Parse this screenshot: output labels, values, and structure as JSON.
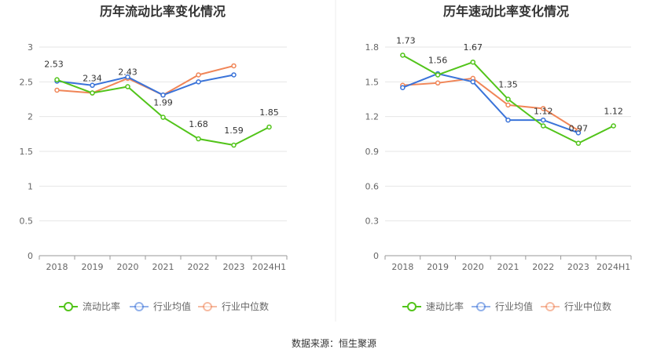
{
  "source_text": "数据来源：恒生聚源",
  "chart_data": [
    {
      "type": "line",
      "title": "历年流动比率变化情况",
      "categories": [
        "2018",
        "2019",
        "2020",
        "2021",
        "2022",
        "2023",
        "2024H1"
      ],
      "ylim": [
        0,
        3
      ],
      "yticks": [
        0,
        0.5,
        1,
        1.5,
        2,
        2.5,
        3
      ],
      "ytick_labels": [
        "0",
        "0.5",
        "1",
        "1.5",
        "2",
        "2.5",
        "3"
      ],
      "grid": true,
      "legend_position": "bottom",
      "series": [
        {
          "name": "流动比率",
          "color": "#52c41a",
          "labeled": true,
          "values": [
            2.53,
            2.34,
            2.43,
            1.99,
            1.68,
            1.59,
            1.85
          ],
          "labels": [
            "2.53",
            "2.34",
            "2.43",
            "1.99",
            "1.68",
            "1.59",
            "1.85"
          ]
        },
        {
          "name": "行业均值",
          "color": "#3a73d9",
          "labeled": false,
          "values": [
            2.51,
            2.45,
            2.57,
            2.31,
            2.5,
            2.6,
            null
          ]
        },
        {
          "name": "行业中位数",
          "color": "#f08557",
          "labeled": false,
          "values": [
            2.38,
            2.34,
            2.55,
            2.31,
            2.6,
            2.73,
            null
          ]
        }
      ]
    },
    {
      "type": "line",
      "title": "历年速动比率变化情况",
      "categories": [
        "2018",
        "2019",
        "2020",
        "2021",
        "2022",
        "2023",
        "2024H1"
      ],
      "ylim": [
        0,
        1.8
      ],
      "yticks": [
        0,
        0.3,
        0.6,
        0.9,
        1.2,
        1.5,
        1.8
      ],
      "ytick_labels": [
        "0",
        "0.3",
        "0.6",
        "0.9",
        "1.2",
        "1.5",
        "1.8"
      ],
      "grid": true,
      "legend_position": "bottom",
      "series": [
        {
          "name": "速动比率",
          "color": "#52c41a",
          "labeled": true,
          "values": [
            1.73,
            1.56,
            1.67,
            1.35,
            1.12,
            0.97,
            1.12
          ],
          "labels": [
            "1.73",
            "1.56",
            "1.67",
            "1.35",
            "1.12",
            "0.97",
            "1.12"
          ]
        },
        {
          "name": "行业均值",
          "color": "#3a73d9",
          "labeled": false,
          "values": [
            1.45,
            1.57,
            1.5,
            1.17,
            1.17,
            1.06,
            null
          ]
        },
        {
          "name": "行业中位数",
          "color": "#f08557",
          "labeled": false,
          "values": [
            1.47,
            1.49,
            1.53,
            1.3,
            1.27,
            1.08,
            null
          ]
        }
      ]
    }
  ]
}
